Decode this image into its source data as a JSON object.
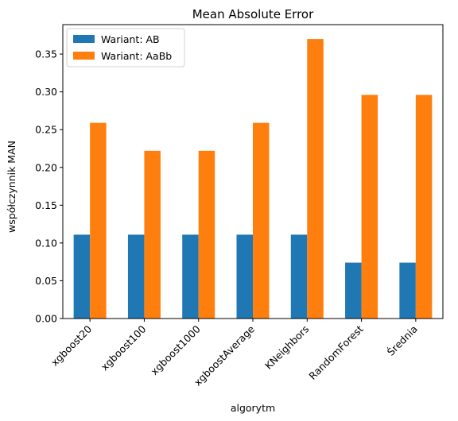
{
  "chart_data": {
    "type": "bar",
    "title": "Mean Absolute Error",
    "xlabel": "algorytm",
    "ylabel": "współczynnik MAN",
    "categories": [
      "xgboost20",
      "xgboost100",
      "xgboost1000",
      "xgboostAverage",
      "KNeighbors",
      "RandomForest",
      "Średnia"
    ],
    "series": [
      {
        "name": "Wariant: AB",
        "color": "#1f77b4",
        "values": [
          0.111,
          0.111,
          0.111,
          0.111,
          0.111,
          0.074,
          0.074
        ]
      },
      {
        "name": "Wariant: AaBb",
        "color": "#ff7f0e",
        "values": [
          0.259,
          0.222,
          0.222,
          0.259,
          0.37,
          0.296,
          0.296
        ]
      }
    ],
    "ylim": [
      0,
      0.389
    ],
    "yticks": [
      "0.00",
      "0.05",
      "0.10",
      "0.15",
      "0.20",
      "0.25",
      "0.30",
      "0.35"
    ],
    "grid": false,
    "legend": "top-left"
  }
}
